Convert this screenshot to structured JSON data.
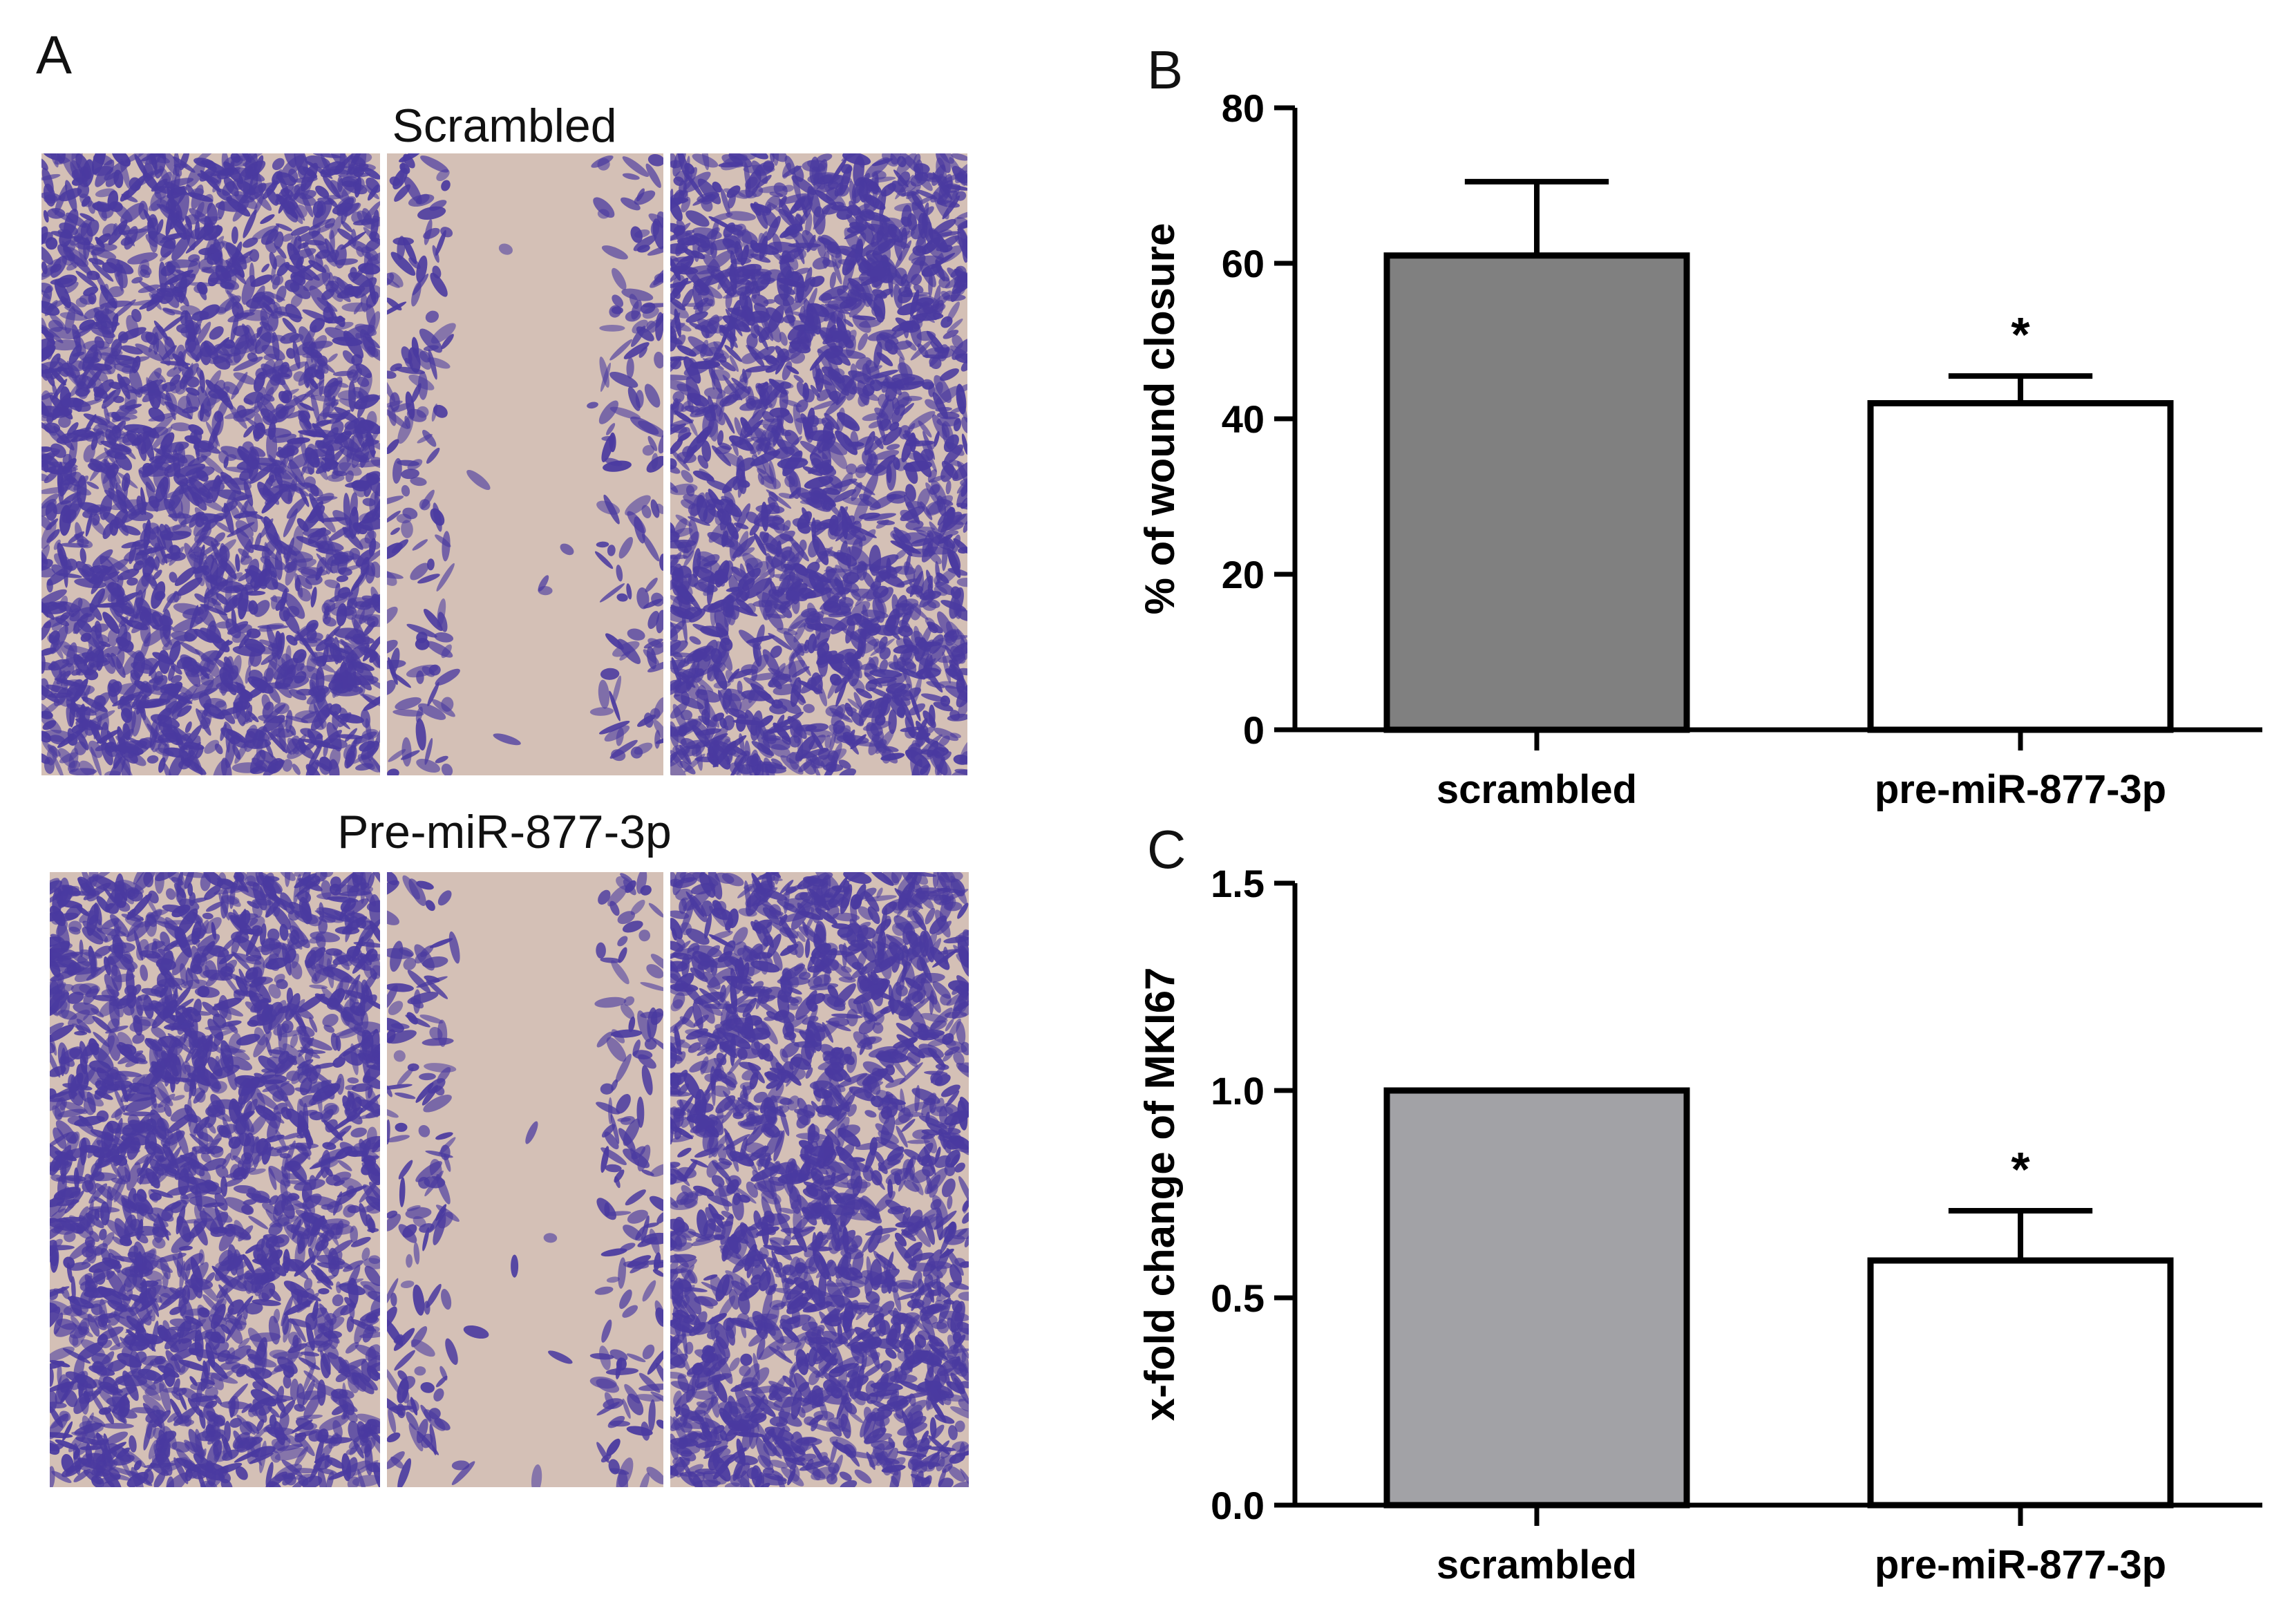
{
  "panels": {
    "a": {
      "letter": "A"
    },
    "b": {
      "letter": "B"
    },
    "c": {
      "letter": "C"
    }
  },
  "micrographs": [
    {
      "title": "Scrambled",
      "gap": "wide"
    },
    {
      "title": "Pre-miR-877-3p",
      "gap": "wide"
    }
  ],
  "colors": {
    "cell_stain": "#4a3aa0",
    "background": "#d4c0b6",
    "bar_b_scrambled": "#808080",
    "bar_c_scrambled": "#a2a2a6",
    "bar_pre_mir": "#ffffff"
  },
  "chart_data": [
    {
      "type": "bar",
      "panel": "B",
      "categories": [
        "scrambled",
        "pre-miR-877-3p"
      ],
      "values": [
        61,
        42
      ],
      "errors": [
        9.5,
        3.5
      ],
      "significance": [
        "",
        "*"
      ],
      "ylabel": "% of wound closure",
      "ylim": [
        0,
        80
      ],
      "yticks": [
        "0",
        "20",
        "40",
        "60",
        "80"
      ],
      "grid": false
    },
    {
      "type": "bar",
      "panel": "C",
      "categories": [
        "scrambled",
        "pre-miR-877-3p"
      ],
      "values": [
        1.0,
        0.59
      ],
      "errors": [
        0,
        0.12
      ],
      "significance": [
        "",
        "*"
      ],
      "ylabel": "x-fold change of MKI67",
      "ylim": [
        0,
        1.5
      ],
      "yticks": [
        "0.0",
        "0.5",
        "1.0",
        "1.5"
      ],
      "grid": false
    }
  ]
}
